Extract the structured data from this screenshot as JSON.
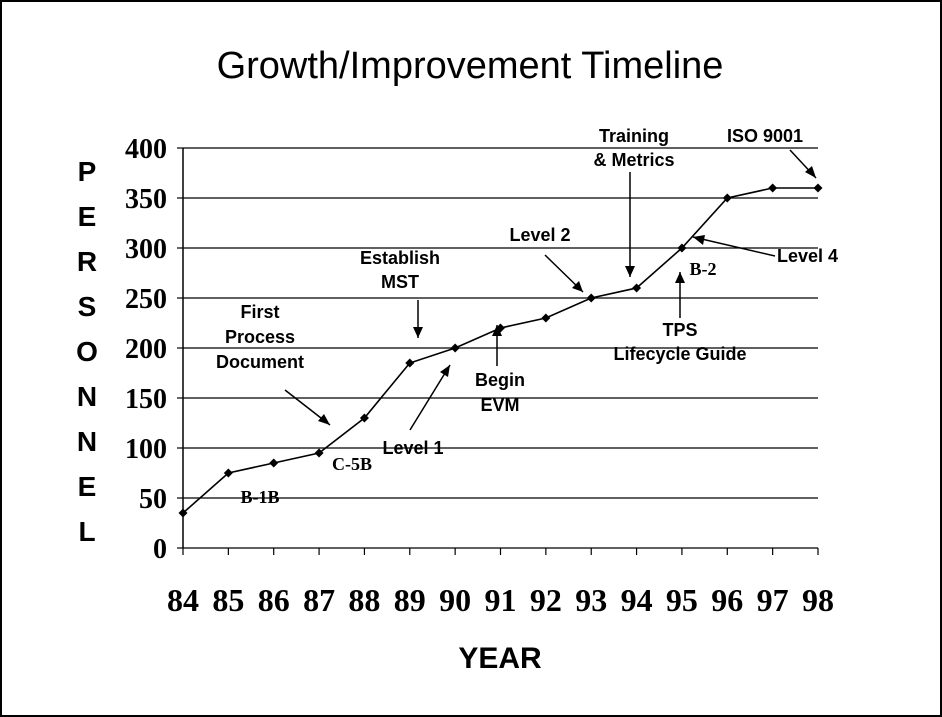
{
  "chart_data": {
    "type": "line",
    "title": "Growth/Improvement Timeline",
    "y_label": [
      "P",
      "E",
      "R",
      "S",
      "O",
      "N",
      "N",
      "E",
      "L"
    ],
    "x_label": "YEAR",
    "categories": [
      "84",
      "85",
      "86",
      "87",
      "88",
      "89",
      "90",
      "91",
      "92",
      "93",
      "94",
      "95",
      "96",
      "97",
      "98"
    ],
    "series": [
      {
        "color": "#000000",
        "values": [
          35,
          75,
          85,
          95,
          130,
          185,
          200,
          220,
          230,
          250,
          260,
          300,
          350,
          360,
          360
        ]
      }
    ],
    "ylim": [
      0,
      400
    ],
    "yticks": [
      0,
      50,
      100,
      150,
      200,
      250,
      300,
      350,
      400
    ],
    "grid": true,
    "annotations": [
      [
        "First",
        "Process",
        "Document"
      ],
      [
        "Establish",
        "MST"
      ],
      [
        "Level 2"
      ],
      [
        "Training",
        "& Metrics"
      ],
      [
        "ISO 9001"
      ],
      [
        "Level 4"
      ],
      [
        "B-2"
      ],
      [
        "TPS",
        "Lifecycle Guide"
      ],
      [
        "Begin",
        "EVM"
      ],
      [
        "Level 1"
      ],
      [
        "C-5B"
      ],
      [
        "B-1B"
      ]
    ]
  }
}
